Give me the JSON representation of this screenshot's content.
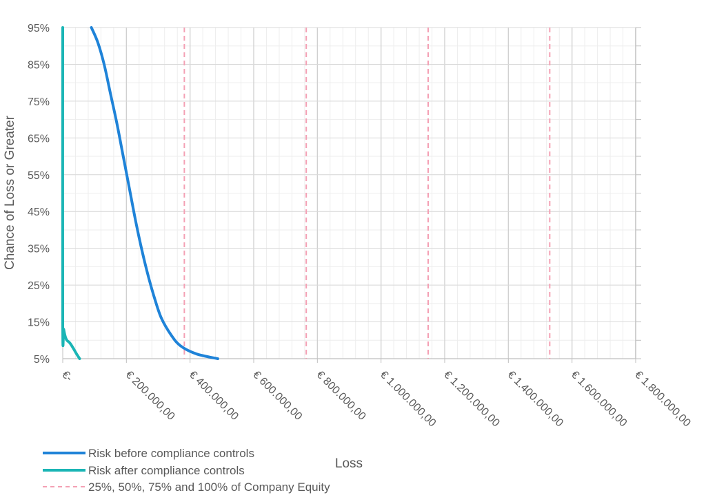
{
  "chart_data": {
    "type": "line",
    "title": "",
    "xlabel": "Loss",
    "ylabel": "Chance of Loss or Greater",
    "xlim": [
      0,
      1800000
    ],
    "ylim": [
      5,
      95
    ],
    "x_ticks": [
      0,
      200000,
      400000,
      600000,
      800000,
      1000000,
      1200000,
      1400000,
      1600000,
      1800000
    ],
    "x_tick_labels": [
      "€-",
      "€ 200.000,00",
      "€ 400.000,00",
      "€ 600.000,00",
      "€ 800.000,00",
      "€ 1.000.000,00",
      "€ 1.200.000,00",
      "€ 1.400.000,00",
      "€ 1.600.000,00",
      "€ 1.800.000,00"
    ],
    "y_ticks": [
      5,
      15,
      25,
      35,
      45,
      55,
      65,
      75,
      85,
      95
    ],
    "y_tick_labels": [
      "5%",
      "15%",
      "25%",
      "35%",
      "45%",
      "55%",
      "65%",
      "75%",
      "85%",
      "95%"
    ],
    "grid": true,
    "legend_position": "bottom-left",
    "series": [
      {
        "name": "Risk before compliance controls",
        "color": "#1f83d8",
        "style": "solid",
        "points": [
          [
            90000,
            95
          ],
          [
            110000,
            91
          ],
          [
            130000,
            85
          ],
          [
            150000,
            77
          ],
          [
            170000,
            69
          ],
          [
            190000,
            60
          ],
          [
            210000,
            51
          ],
          [
            230000,
            42
          ],
          [
            250000,
            34
          ],
          [
            270000,
            27
          ],
          [
            290000,
            21
          ],
          [
            310000,
            16
          ],
          [
            340000,
            11.5
          ],
          [
            370000,
            8.5
          ],
          [
            420000,
            6.3
          ],
          [
            487000,
            5
          ]
        ]
      },
      {
        "name": "Risk after compliance controls",
        "color": "#1ab5b5",
        "style": "solid",
        "points": [
          [
            0,
            95
          ],
          [
            0,
            15
          ],
          [
            3000,
            13
          ],
          [
            8000,
            11
          ],
          [
            13000,
            10
          ],
          [
            22000,
            9.3
          ],
          [
            32000,
            8
          ],
          [
            42000,
            6.5
          ],
          [
            53000,
            5
          ]
        ]
      },
      {
        "name": "25%, 50%, 75% and 100% of Company Equity",
        "color": "#f4a0b4",
        "style": "dashed",
        "verticals": [
          382000,
          765000,
          1148000,
          1530000
        ]
      }
    ]
  }
}
